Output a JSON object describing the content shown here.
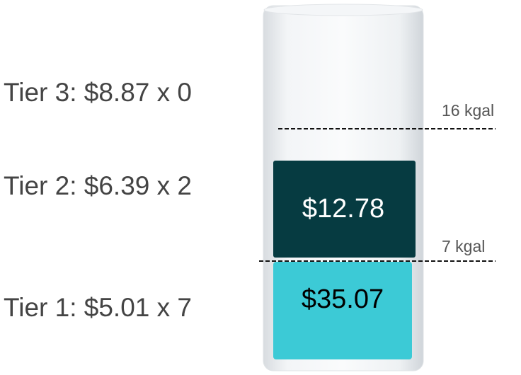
{
  "tiers": [
    {
      "label": "Tier 3: $8.87 x 0"
    },
    {
      "label": "Tier 2: $6.39 x 2",
      "amount": "$12.78"
    },
    {
      "label": "Tier 1: $5.01 x 7",
      "amount": "$35.07"
    }
  ],
  "thresholds": [
    "16 kgal",
    "7 kgal"
  ]
}
